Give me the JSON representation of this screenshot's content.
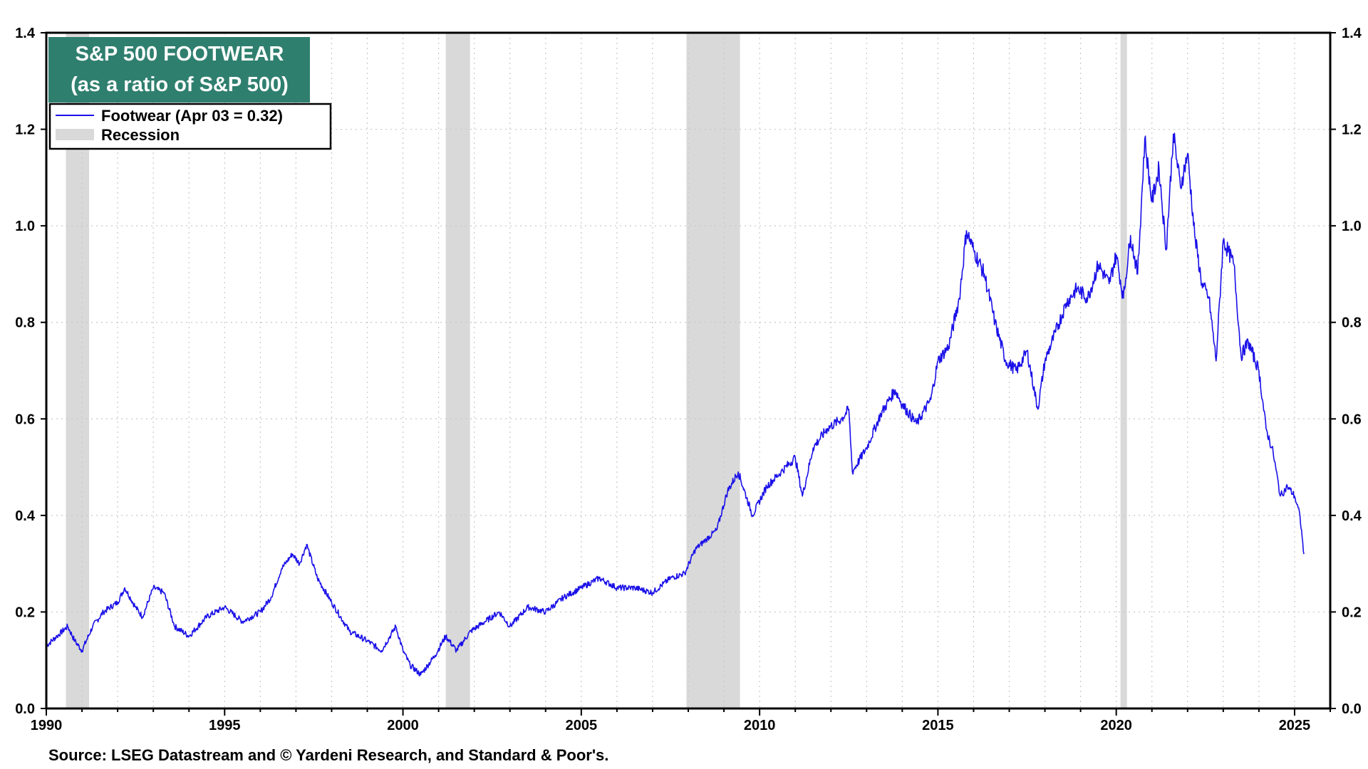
{
  "chart_data": {
    "type": "line",
    "title": "S&P 500 FOOTWEAR",
    "subtitle": "(as a ratio of S&P 500)",
    "source": "Source: LSEG Datastream and © Yardeni Research, and Standard & Poor's.",
    "xlim": [
      1990,
      2026
    ],
    "ylim": [
      0,
      1.4
    ],
    "x_ticks": [
      1990,
      1995,
      2000,
      2005,
      2010,
      2015,
      2020,
      2025
    ],
    "y_ticks": [
      0.0,
      0.2,
      0.4,
      0.6,
      0.8,
      1.0,
      1.2,
      1.4
    ],
    "y_tick_labels": [
      "0.0",
      "0.2",
      "0.4",
      "0.6",
      "0.8",
      "1.0",
      "1.2",
      "1.4"
    ],
    "grid": true,
    "legend_position": "top-left",
    "colors": {
      "series": "#1a10e8",
      "recession": "#d9d9d9",
      "title_bg": "#2f7f6f",
      "grid": "#c8c8c8"
    },
    "series": [
      {
        "name": "Footwear (Apr 03 = 0.32)",
        "x": [
          1990.0,
          1990.3,
          1990.6,
          1990.8,
          1991.0,
          1991.3,
          1991.6,
          1992.0,
          1992.2,
          1992.5,
          1992.7,
          1993.0,
          1993.3,
          1993.6,
          1994.0,
          1994.5,
          1995.0,
          1995.5,
          1996.0,
          1996.3,
          1996.6,
          1996.9,
          1997.1,
          1997.3,
          1997.6,
          1998.0,
          1998.5,
          1999.0,
          1999.4,
          1999.8,
          2000.0,
          2000.2,
          2000.5,
          2000.9,
          2001.2,
          2001.5,
          2001.9,
          2002.3,
          2002.7,
          2003.0,
          2003.5,
          2004.0,
          2004.5,
          2005.0,
          2005.5,
          2006.0,
          2006.5,
          2007.0,
          2007.5,
          2007.9,
          2008.2,
          2008.5,
          2008.8,
          2009.1,
          2009.4,
          2009.8,
          2010.2,
          2010.6,
          2011.0,
          2011.2,
          2011.5,
          2011.9,
          2012.3,
          2012.5,
          2012.6,
          2013.0,
          2013.4,
          2013.8,
          2014.0,
          2014.4,
          2014.8,
          2015.0,
          2015.3,
          2015.6,
          2015.8,
          2016.0,
          2016.3,
          2016.6,
          2016.9,
          2017.2,
          2017.5,
          2017.8,
          2018.0,
          2018.3,
          2018.6,
          2018.9,
          2019.2,
          2019.5,
          2019.8,
          2020.0,
          2020.2,
          2020.4,
          2020.6,
          2020.8,
          2021.0,
          2021.2,
          2021.4,
          2021.6,
          2021.8,
          2022.0,
          2022.2,
          2022.4,
          2022.6,
          2022.8,
          2023.0,
          2023.3,
          2023.5,
          2023.7,
          2024.0,
          2024.2,
          2024.4,
          2024.6,
          2024.8,
          2025.0,
          2025.15,
          2025.26
        ],
        "values": [
          0.13,
          0.15,
          0.17,
          0.14,
          0.12,
          0.17,
          0.2,
          0.22,
          0.25,
          0.21,
          0.19,
          0.25,
          0.24,
          0.17,
          0.15,
          0.19,
          0.21,
          0.18,
          0.2,
          0.23,
          0.29,
          0.32,
          0.3,
          0.34,
          0.27,
          0.22,
          0.16,
          0.14,
          0.12,
          0.17,
          0.12,
          0.09,
          0.07,
          0.11,
          0.15,
          0.12,
          0.16,
          0.18,
          0.2,
          0.17,
          0.21,
          0.2,
          0.23,
          0.25,
          0.27,
          0.25,
          0.25,
          0.24,
          0.27,
          0.28,
          0.33,
          0.35,
          0.37,
          0.45,
          0.49,
          0.4,
          0.46,
          0.49,
          0.52,
          0.44,
          0.54,
          0.58,
          0.6,
          0.62,
          0.49,
          0.54,
          0.61,
          0.66,
          0.63,
          0.59,
          0.64,
          0.72,
          0.75,
          0.85,
          0.99,
          0.95,
          0.9,
          0.8,
          0.72,
          0.7,
          0.74,
          0.62,
          0.72,
          0.78,
          0.84,
          0.87,
          0.85,
          0.92,
          0.88,
          0.94,
          0.85,
          0.98,
          0.9,
          1.18,
          1.05,
          1.12,
          0.95,
          1.19,
          1.08,
          1.15,
          0.98,
          0.88,
          0.85,
          0.72,
          0.97,
          0.92,
          0.73,
          0.76,
          0.7,
          0.58,
          0.53,
          0.44,
          0.46,
          0.44,
          0.4,
          0.32
        ]
      }
    ],
    "recession_label": "Recession",
    "recessions": [
      [
        1990.55,
        1991.2
      ],
      [
        2001.2,
        2001.88
      ],
      [
        2007.95,
        2009.45
      ],
      [
        2020.12,
        2020.3
      ]
    ]
  }
}
